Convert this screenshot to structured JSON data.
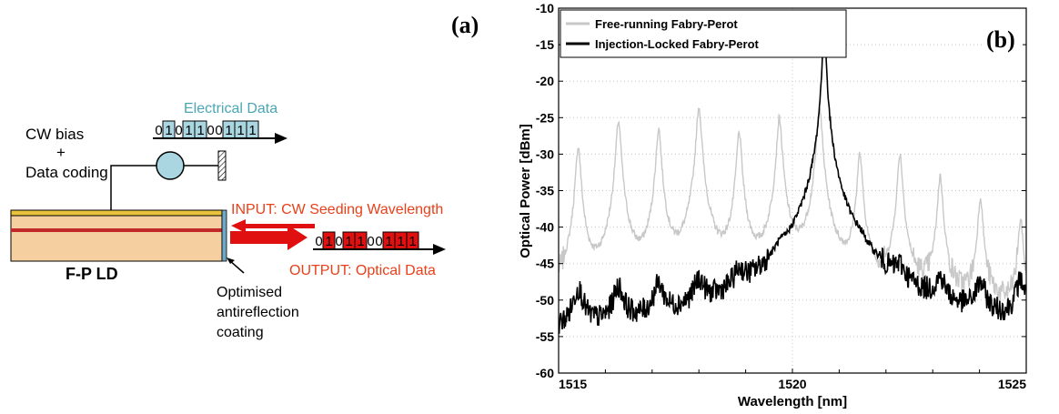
{
  "panel_a": {
    "label": "(a)",
    "cw_bias": "CW bias",
    "plus": "+",
    "data_coding": "Data coding",
    "electrical_data": "Electrical Data",
    "electrical_bits": [
      "0",
      "1",
      "0",
      "1",
      "1",
      "0",
      "0",
      "1",
      "1",
      "1"
    ],
    "input_label": "INPUT: CW Seeding Wavelength",
    "output_label": "OUTPUT: Optical Data",
    "optical_bits": [
      "0",
      "1",
      "0",
      "1",
      "1",
      "0",
      "0",
      "1",
      "1",
      "1"
    ],
    "device_label": "F-P LD",
    "coating_lines": [
      "Optimised",
      "antireflection",
      "coating"
    ],
    "colors": {
      "electrical": "#a9d6e0",
      "electrical_text": "#4aa6b5",
      "optical": "#e01010",
      "laser_body": "#f6cfa0",
      "laser_top": "#e8c23a"
    }
  },
  "chart_data": {
    "type": "line",
    "label": "(b)",
    "xlabel": "Wavelength [nm]",
    "ylabel": "Optical Power [dBm]",
    "xlim": [
      1515,
      1525
    ],
    "ylim": [
      -60,
      -10
    ],
    "x_ticks": [
      "1515",
      "1520",
      "1525"
    ],
    "y_ticks": [
      "-10",
      "-15",
      "-20",
      "-25",
      "-30",
      "-35",
      "-40",
      "-45",
      "-50",
      "-55",
      "-60"
    ],
    "legend_placement": "top-left",
    "series": [
      {
        "name": "Free-running Fabry-Perot",
        "color": "#c8c8c8",
        "mode_peaks": {
          "x": [
            1515.42,
            1516.28,
            1517.14,
            1518.0,
            1518.86,
            1519.72,
            1520.58,
            1521.44,
            1522.3,
            1523.16,
            1524.02,
            1524.88
          ],
          "y": [
            -29,
            -25.5,
            -26.5,
            -23.5,
            -27,
            -25,
            -23.5,
            -30,
            -30,
            -33,
            -36,
            -39
          ]
        },
        "floor_dbm": -52
      },
      {
        "name": "Injection-Locked Fabry-Perot",
        "color": "#000000",
        "mode_peaks": {
          "x": [
            1515.42,
            1516.28,
            1517.14,
            1518.0,
            1518.86,
            1519.72,
            1520.68,
            1521.44,
            1522.3,
            1523.16,
            1524.02,
            1524.88
          ],
          "y": [
            -49,
            -49,
            -49,
            -49,
            -49,
            -49,
            -11,
            -49,
            -49,
            -49,
            -49,
            -48
          ]
        },
        "floor_dbm": -56
      }
    ]
  }
}
